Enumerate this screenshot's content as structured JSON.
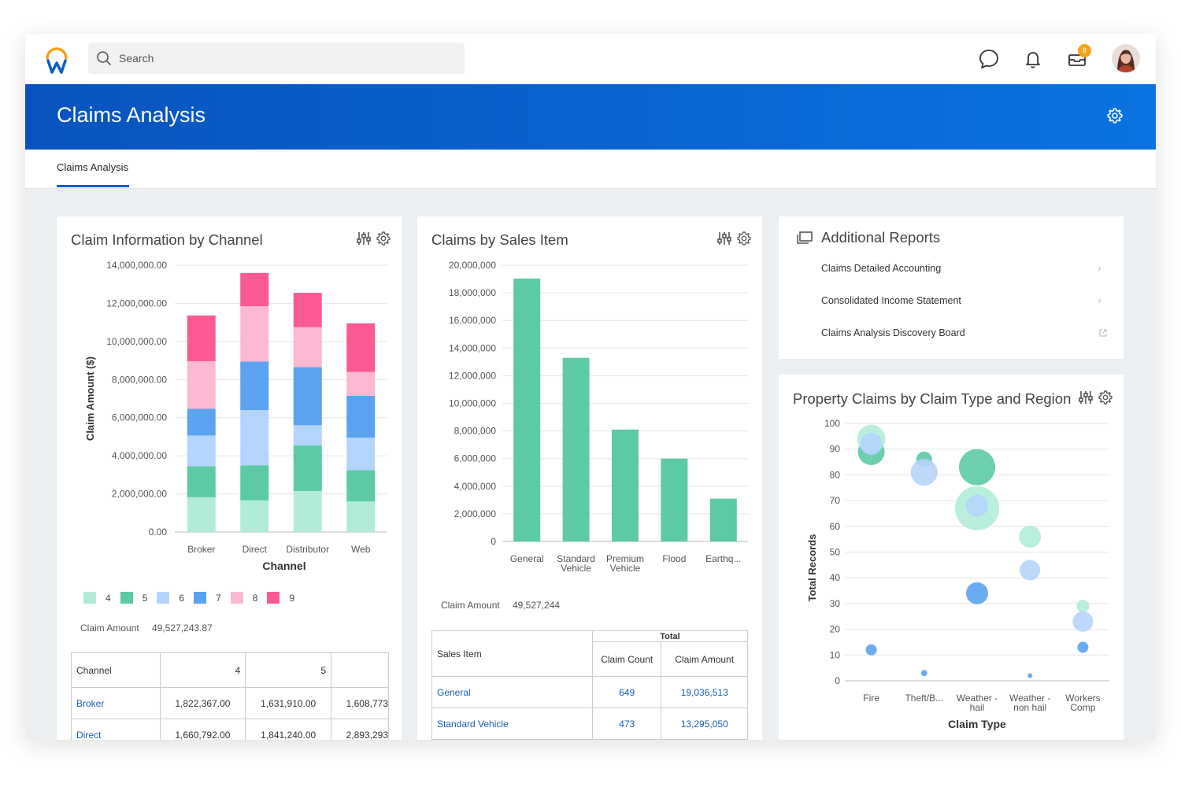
{
  "search": {
    "placeholder": "Search"
  },
  "header": {
    "notification_badge": "8"
  },
  "page": {
    "title": "Claims Analysis",
    "tab": "Claims Analysis"
  },
  "colors": {
    "brand_blue": "#0a5cc8",
    "link": "#1a5fb4",
    "green": "#5ccaa6",
    "level4": "#b2ecd9",
    "level5": "#5ccaa6",
    "level6": "#b5d4fb",
    "level7": "#5ba3ee",
    "level8": "#fbb8d2",
    "level9": "#fa5993"
  },
  "channel_card": {
    "title": "Claim Information by Channel",
    "summary_label": "Claim Amount",
    "summary_value": "49,527,243.87",
    "table": {
      "headers": [
        "Channel",
        "4",
        "5",
        ""
      ],
      "rows": [
        {
          "channel": "Broker",
          "c4": "1,822,367.00",
          "c5": "1,631,910.00",
          "c6": "1,608,773"
        },
        {
          "channel": "Direct",
          "c4": "1,660,792.00",
          "c5": "1,841,240.00",
          "c6": "2,893,293"
        }
      ]
    }
  },
  "sales_card": {
    "title": "Claims by Sales Item",
    "summary_label": "Claim Amount",
    "summary_value": "49,527,244",
    "table": {
      "group_header": "Total",
      "headers": [
        "Sales Item",
        "Claim Count",
        "Claim Amount"
      ],
      "rows": [
        {
          "item": "General",
          "count": "649",
          "amount": "19,036,513"
        },
        {
          "item": "Standard Vehicle",
          "count": "473",
          "amount": "13,295,050"
        }
      ]
    }
  },
  "reports_card": {
    "title": "Additional Reports",
    "items": [
      {
        "label": "Claims Detailed Accounting",
        "icon": "chevron-right-icon"
      },
      {
        "label": "Consolidated Income Statement",
        "icon": "chevron-right-icon"
      },
      {
        "label": "Claims Analysis Discovery Board",
        "icon": "external-link-icon"
      }
    ]
  },
  "property_card": {
    "title": "Property Claims by Claim Type and Region"
  },
  "chart_data": [
    {
      "type": "bar",
      "stacked": true,
      "xlabel": "Channel",
      "ylabel": "Claim Amount ($)",
      "ylim": [
        0,
        14000000
      ],
      "yticks": [
        "0.00",
        "2,000,000.00",
        "4,000,000.00",
        "6,000,000.00",
        "8,000,000.00",
        "10,000,000.00",
        "12,000,000.00",
        "14,000,000.00"
      ],
      "categories": [
        "Broker",
        "Direct",
        "Distributor",
        "Web"
      ],
      "series": [
        {
          "name": "4",
          "color": "#b2ecd9",
          "values": [
            1822367,
            1660792,
            2150000,
            1600000
          ]
        },
        {
          "name": "5",
          "color": "#5ccaa6",
          "values": [
            1631910,
            1841240,
            2400000,
            1650000
          ]
        },
        {
          "name": "6",
          "color": "#b5d4fb",
          "values": [
            1608773,
            2893293,
            1050000,
            1700000
          ]
        },
        {
          "name": "7",
          "color": "#5ba3ee",
          "values": [
            1400000,
            2550000,
            3050000,
            2200000
          ]
        },
        {
          "name": "8",
          "color": "#fbb8d2",
          "values": [
            2500000,
            2900000,
            2100000,
            1250000
          ]
        },
        {
          "name": "9",
          "color": "#fa5993",
          "values": [
            2400000,
            1750000,
            1800000,
            2550000
          ]
        }
      ],
      "legend": "bottom"
    },
    {
      "type": "bar",
      "ylim": [
        0,
        20000000
      ],
      "yticks": [
        "0",
        "2,000,000",
        "4,000,000",
        "6,000,000",
        "8,000,000",
        "10,000,000",
        "12,000,000",
        "14,000,000",
        "16,000,000",
        "18,000,000",
        "20,000,000"
      ],
      "categories": [
        "General",
        "Standard Vehicle",
        "Premium Vehicle",
        "Flood",
        "Earthq..."
      ],
      "values": [
        19036513,
        13295050,
        8100000,
        6000000,
        3100000
      ],
      "color": "#5ccaa6"
    },
    {
      "type": "scatter",
      "xlabel": "Claim Type",
      "ylabel": "Total Records",
      "ylim": [
        0,
        100
      ],
      "yticks": [
        "0",
        "10",
        "20",
        "30",
        "40",
        "50",
        "60",
        "70",
        "80",
        "90",
        "100"
      ],
      "categories": [
        "Fire",
        "Theft/B...",
        "Weather - hail",
        "Weather - non hail",
        "Workers Comp"
      ],
      "points": [
        {
          "x": 0,
          "y": 89,
          "r": 17,
          "color": "#5ccaa6"
        },
        {
          "x": 0,
          "y": 94,
          "r": 18,
          "color": "#b2ecd9"
        },
        {
          "x": 0,
          "y": 92,
          "r": 14,
          "color": "#b5d4fb"
        },
        {
          "x": 0,
          "y": 12,
          "r": 7,
          "color": "#5ba3ee"
        },
        {
          "x": 1,
          "y": 86,
          "r": 10,
          "color": "#5ccaa6"
        },
        {
          "x": 1,
          "y": 81,
          "r": 17,
          "color": "#b5d4fb"
        },
        {
          "x": 1,
          "y": 3,
          "r": 4,
          "color": "#5ba3ee"
        },
        {
          "x": 2,
          "y": 83,
          "r": 23,
          "color": "#5ccaa6"
        },
        {
          "x": 2,
          "y": 67,
          "r": 28,
          "color": "#b2ecd9"
        },
        {
          "x": 2,
          "y": 68,
          "r": 14,
          "color": "#b5d4fb"
        },
        {
          "x": 2,
          "y": 34,
          "r": 14,
          "color": "#5ba3ee"
        },
        {
          "x": 3,
          "y": 56,
          "r": 14,
          "color": "#b2ecd9"
        },
        {
          "x": 3,
          "y": 43,
          "r": 13,
          "color": "#b5d4fb"
        },
        {
          "x": 3,
          "y": 2,
          "r": 3,
          "color": "#5ba3ee"
        },
        {
          "x": 4,
          "y": 29,
          "r": 8,
          "color": "#b2ecd9"
        },
        {
          "x": 4,
          "y": 23,
          "r": 13,
          "color": "#b5d4fb"
        },
        {
          "x": 4,
          "y": 13,
          "r": 7,
          "color": "#5ba3ee"
        }
      ]
    }
  ]
}
